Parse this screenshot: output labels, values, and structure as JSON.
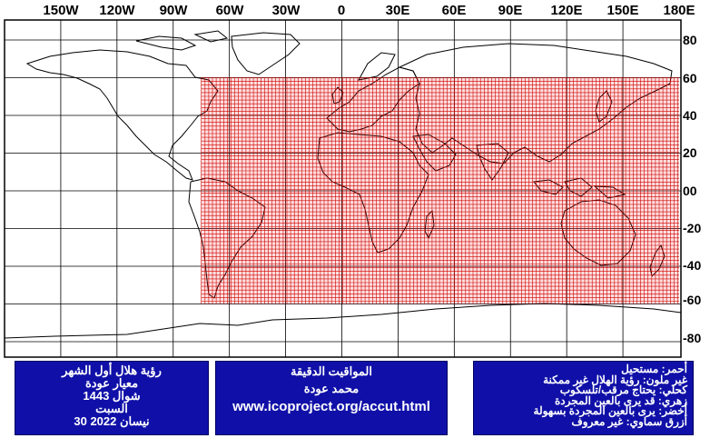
{
  "map": {
    "longitude_labels": [
      "150W",
      "120W",
      "90W",
      "60W",
      "30W",
      "0",
      "30E",
      "60E",
      "90E",
      "120E",
      "150E",
      "180E"
    ],
    "latitude_labels": [
      "80",
      "60",
      "40",
      "20",
      "00",
      "-20",
      "-40",
      "-60",
      "-80"
    ],
    "colors": {
      "background": "#ffffff",
      "coastline": "#000000",
      "visibility_zone_fill": "#ff0000",
      "visibility_zone_grid": "#cc0000",
      "info_box": "#1010a8"
    },
    "visibility_zone": {
      "category": "red",
      "lon_range": [
        -75,
        180
      ],
      "lat_range": [
        -60,
        60
      ]
    }
  },
  "info_left": {
    "line1": "رؤية هلال أول الشهر",
    "line2": "معيار عودة",
    "line3": "شوال 1443",
    "line4": "السبت",
    "line5": "30 نيسان 2022"
  },
  "info_center": {
    "line1": "المواقيت الدقيقة",
    "line2": "محمد عودة",
    "line3": "www.icoproject.org/accut.html"
  },
  "legend": {
    "items": [
      "أحمر: مستحيل",
      "غير ملون: رؤية الهلال غير ممكنة",
      "كحلي: يحتاج مرقب/تلسكوب",
      "زهري: قد يرى بالعين المجردة",
      "أخضر: يرى بالعين المجردة بسهولة",
      "أزرق سماوي: غير معروف"
    ]
  }
}
